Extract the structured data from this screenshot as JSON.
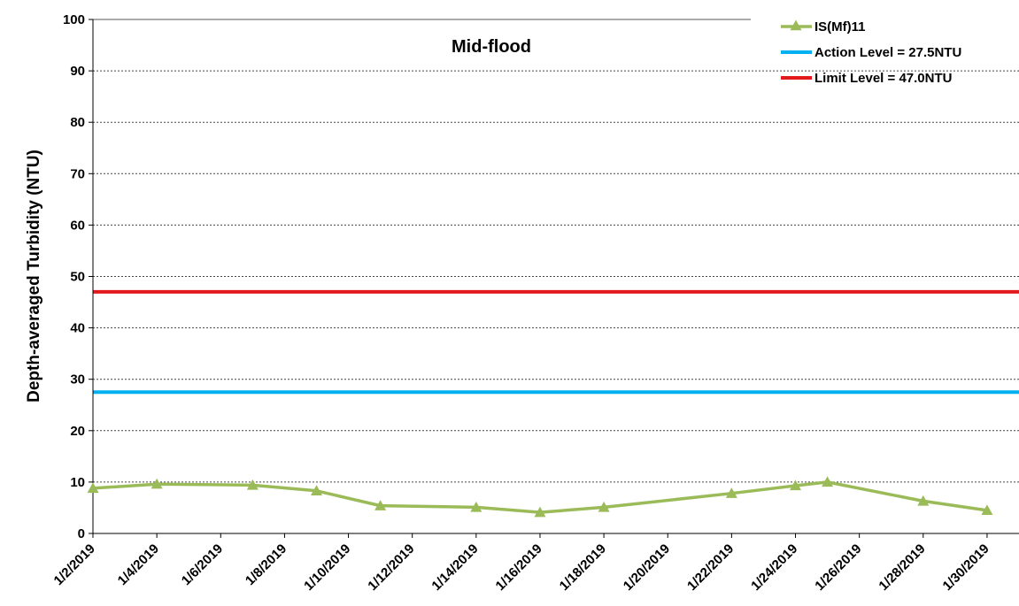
{
  "chart_data": {
    "type": "line",
    "title": "Mid-flood",
    "xlabel": "",
    "ylabel": "Depth-averaged Turbidity (NTU)",
    "ylim": [
      0,
      100
    ],
    "yticks": [
      0,
      10,
      20,
      30,
      40,
      50,
      60,
      70,
      80,
      90,
      100
    ],
    "xlim": [
      "2019-01-02",
      "2019-01-31"
    ],
    "xticks": [
      "1/2/2019",
      "1/4/2019",
      "1/6/2019",
      "1/8/2019",
      "1/10/2019",
      "1/12/2019",
      "1/14/2019",
      "1/16/2019",
      "1/18/2019",
      "1/20/2019",
      "1/22/2019",
      "1/24/2019",
      "1/26/2019",
      "1/28/2019",
      "1/30/2019"
    ],
    "grid": "horizontal dotted",
    "legend_position": "top-right",
    "series": [
      {
        "name": "IS(Mf)11",
        "color": "#9bbb59",
        "marker": "triangle",
        "x": [
          "2019-01-02",
          "2019-01-04",
          "2019-01-07",
          "2019-01-09",
          "2019-01-11",
          "2019-01-14",
          "2019-01-16",
          "2019-01-18",
          "2019-01-22",
          "2019-01-24",
          "2019-01-25",
          "2019-01-28",
          "2019-01-30"
        ],
        "values": [
          8.8,
          9.6,
          9.4,
          8.3,
          5.4,
          5.1,
          4.1,
          5.1,
          7.8,
          9.3,
          10.0,
          6.3,
          4.5
        ]
      },
      {
        "name": "Action Level = 27.5NTU",
        "color": "#00b0f0",
        "constant": 27.5
      },
      {
        "name": "Limit Level = 47.0NTU",
        "color": "#e31a1c",
        "constant": 47.0
      }
    ]
  }
}
